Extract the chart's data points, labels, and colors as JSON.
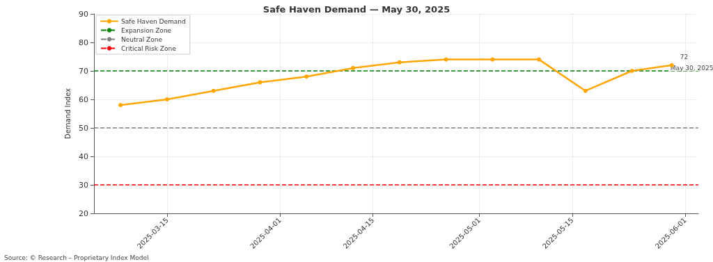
{
  "chart_data": {
    "type": "line",
    "title": "Safe Haven Demand — May 30, 2025",
    "ylabel": "Demand Index",
    "x": [
      "2025-03-08",
      "2025-03-15",
      "2025-03-22",
      "2025-03-29",
      "2025-04-05",
      "2025-04-12",
      "2025-04-19",
      "2025-04-26",
      "2025-05-03",
      "2025-05-10",
      "2025-05-17",
      "2025-05-24",
      "2025-05-30"
    ],
    "series": [
      {
        "name": "Safe Haven Demand",
        "color": "#ffa500",
        "values": [
          58,
          60,
          63,
          66,
          68,
          71,
          73,
          74,
          74,
          74,
          63,
          70,
          72
        ]
      }
    ],
    "xlim": [
      "2025-03-04",
      "2025-06-03"
    ],
    "xticks": [
      "2025-03-15",
      "2025-04-01",
      "2025-04-15",
      "2025-05-01",
      "2025-05-15",
      "2025-06-01"
    ],
    "ylim": [
      20,
      90
    ],
    "yticks": [
      20,
      30,
      40,
      50,
      60,
      70,
      80,
      90
    ],
    "ref_lines": [
      {
        "axis": "y",
        "value": 70,
        "label": "Expansion Zone",
        "color": "#008000",
        "line_style": "dashed"
      },
      {
        "axis": "y",
        "value": 50,
        "label": "Neutral Zone",
        "color": "#808080",
        "line_style": "dashed"
      },
      {
        "axis": "y",
        "value": 30,
        "label": "Critical Risk Zone",
        "color": "#ff0000",
        "line_style": "dashed"
      }
    ],
    "annotations": [
      {
        "text": "72",
        "x": "2025-05-30",
        "y": 72
      },
      {
        "text": "May 30, 2025",
        "x": "2025-05-30",
        "y": 72
      },
      "Source: © Research – Proprietary Index Model"
    ],
    "grid": true,
    "legend": "top left",
    "marker": "circle",
    "line_style": "solid"
  }
}
